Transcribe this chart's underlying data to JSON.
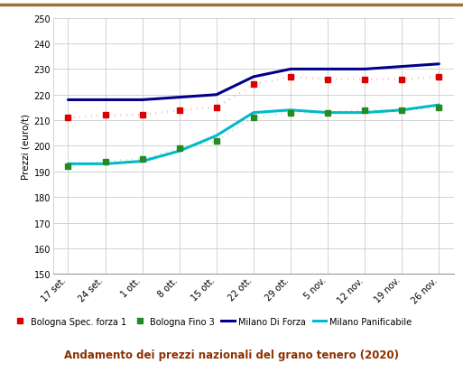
{
  "x_labels": [
    "17 set.",
    "24 set.",
    "1 ott.",
    "8 ott.",
    "15 ott.",
    "22 ott.",
    "29 ott.",
    "5 nov.",
    "12 nov.",
    "19 nov.",
    "26 nov."
  ],
  "bologna_spec": [
    211,
    212,
    212,
    214,
    215,
    224,
    227,
    226,
    226,
    226,
    227
  ],
  "bologna_fino3": [
    192,
    194,
    195,
    199,
    202,
    211,
    213,
    213,
    214,
    214,
    215
  ],
  "milano_forza": [
    218,
    218,
    218,
    219,
    220,
    227,
    230,
    230,
    230,
    231,
    232
  ],
  "milano_panif": [
    193,
    193,
    194,
    198,
    204,
    213,
    214,
    213,
    213,
    214,
    216
  ],
  "colors": {
    "bologna_spec": "#dd0000",
    "bologna_fino3": "#228B22",
    "milano_forza": "#00008B",
    "milano_panif": "#00BBCC"
  },
  "ylabel": "Prezzi (euro/t)",
  "ylim": [
    150,
    250
  ],
  "yticks": [
    150,
    160,
    170,
    180,
    190,
    200,
    210,
    220,
    230,
    240,
    250
  ],
  "legend_labels": [
    "Bologna Spec. forza 1",
    "Bologna Fino 3",
    "Milano Di Forza",
    "Milano Panificabile"
  ],
  "title": "Andamento dei prezzi nazionali del grano tenero (2020)",
  "title_bg": "#f5ddb0",
  "title_color": "#8B3000",
  "background_color": "#ffffff",
  "grid_color": "#cccccc",
  "border_color": "#a07030"
}
